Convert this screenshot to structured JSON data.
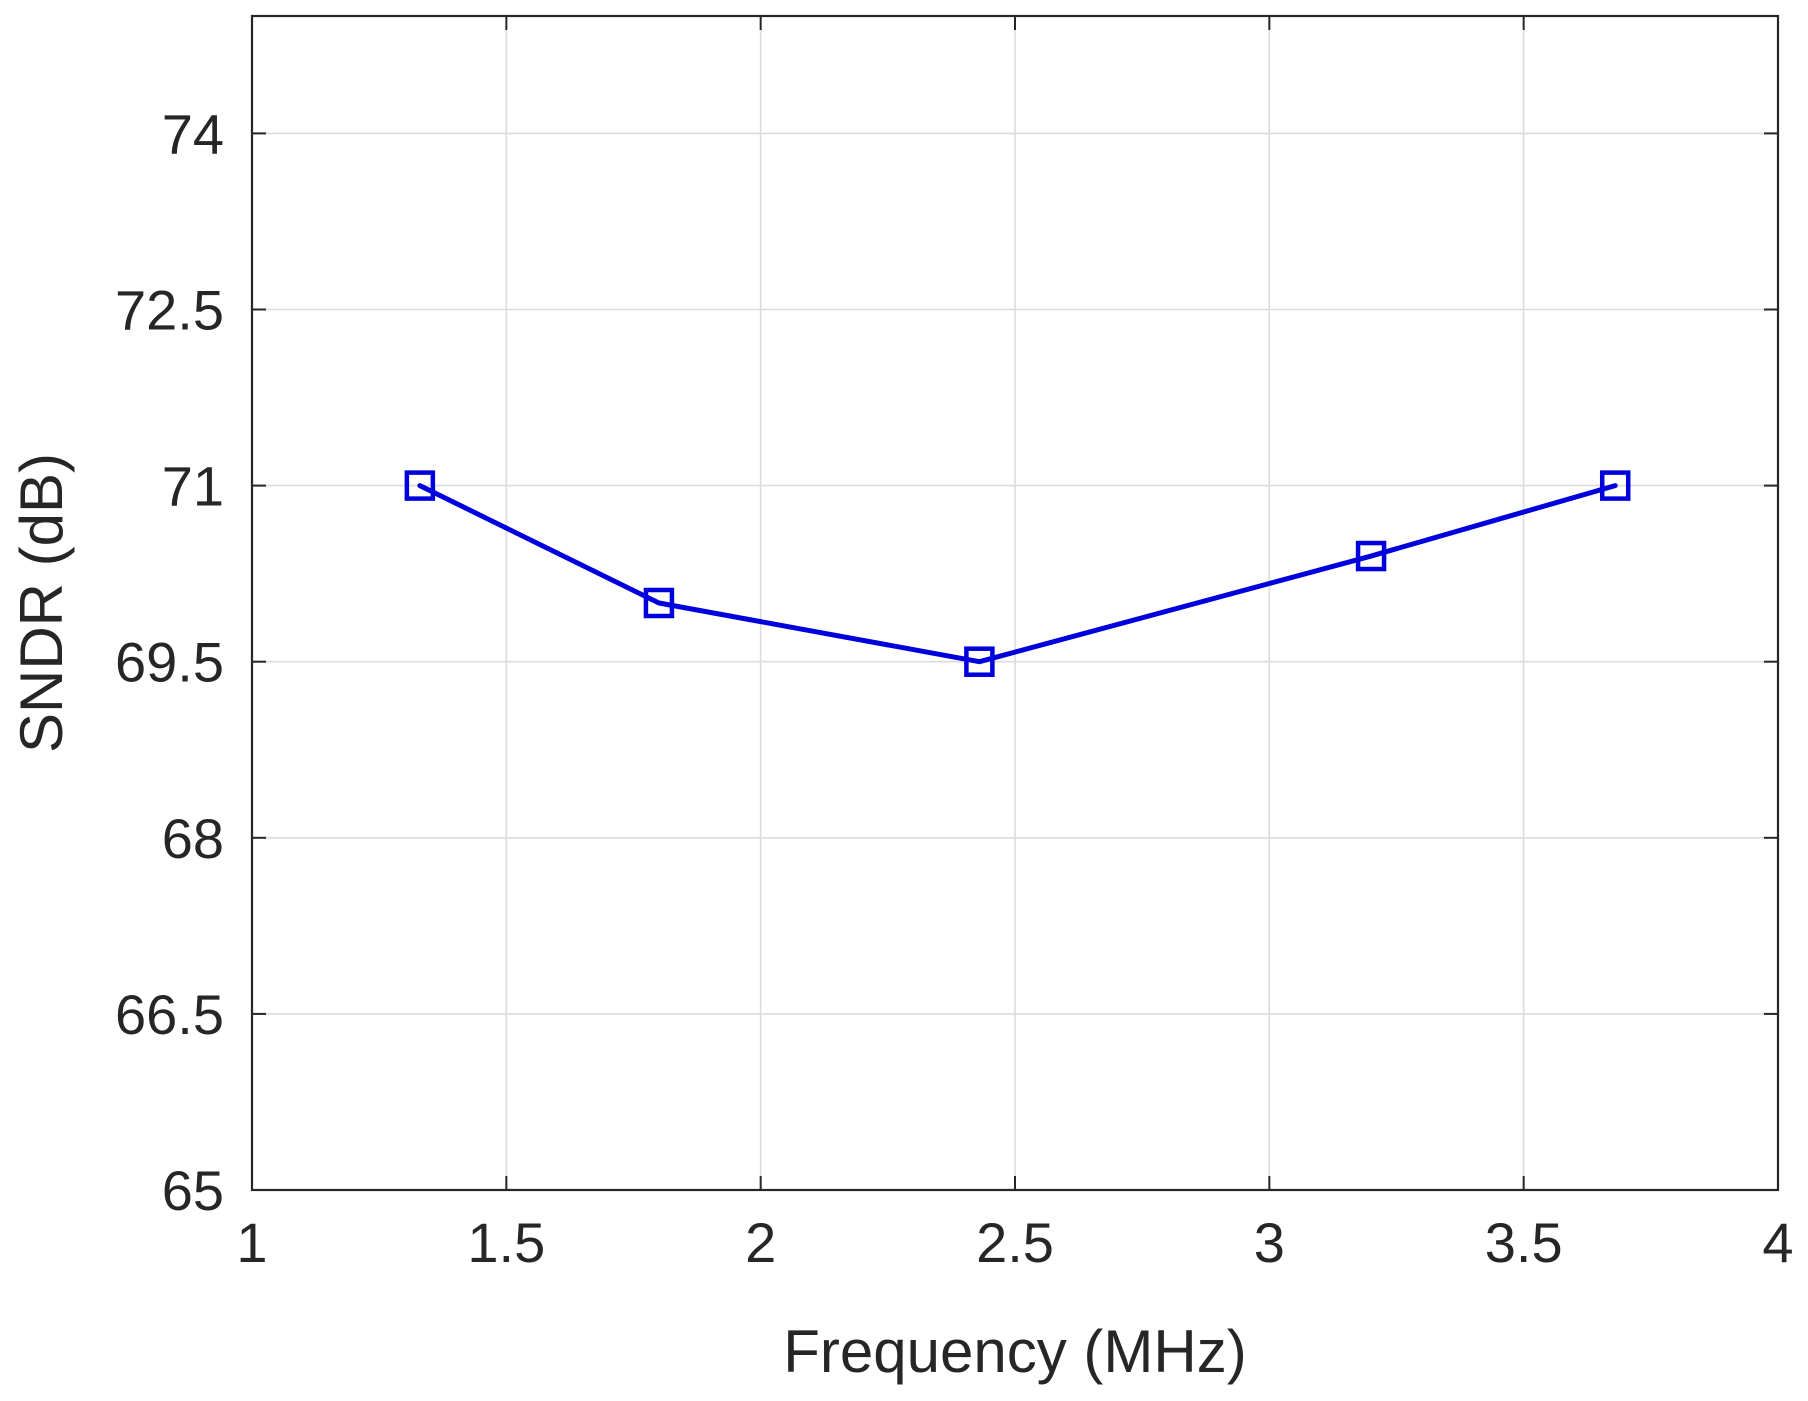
{
  "chart_data": {
    "type": "line",
    "xlabel": "Frequency (MHz)",
    "ylabel": "SNDR (dB)",
    "xlim": [
      1,
      4
    ],
    "ylim": [
      65,
      75
    ],
    "xticks": [
      1,
      1.5,
      2,
      2.5,
      3,
      3.5,
      4
    ],
    "xtick_labels": [
      "1",
      "1.5",
      "2",
      "2.5",
      "3",
      "3.5",
      "4"
    ],
    "yticks": [
      65,
      66.5,
      68,
      69.5,
      71,
      72.5,
      74
    ],
    "ytick_labels": [
      "65",
      "66.5",
      "68",
      "69.5",
      "71",
      "72.5",
      "74"
    ],
    "grid": true,
    "series": [
      {
        "marker": "square",
        "color": "#0000dd",
        "x": [
          1.33,
          1.8,
          2.43,
          3.2,
          3.68
        ],
        "y": [
          71.0,
          70.0,
          69.5,
          70.4,
          71.0
        ]
      }
    ]
  }
}
